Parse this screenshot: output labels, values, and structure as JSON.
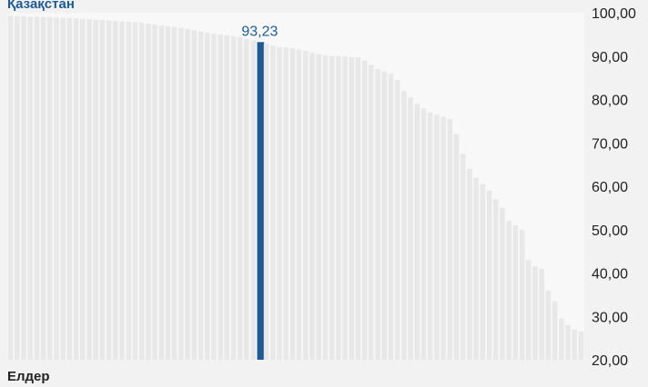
{
  "chart_data": {
    "type": "bar",
    "highlight_label": "Қазақстан",
    "xlabel": "Елдер",
    "ylabel": "",
    "ylim": [
      20,
      100
    ],
    "yticks": [
      "20,00",
      "30,00",
      "40,00",
      "50,00",
      "60,00",
      "70,00",
      "80,00",
      "90,00",
      "100,00"
    ],
    "highlight_index": 38,
    "highlight_value_label": "93,23",
    "values": [
      99.3,
      99.2,
      99.2,
      99.1,
      99.1,
      99.0,
      99.0,
      98.9,
      98.8,
      98.8,
      98.7,
      98.6,
      98.5,
      98.4,
      98.3,
      98.2,
      98.1,
      98.0,
      97.9,
      97.8,
      97.7,
      97.5,
      97.3,
      97.1,
      96.9,
      96.7,
      96.5,
      96.3,
      96.0,
      95.7,
      95.4,
      95.2,
      95.0,
      94.8,
      94.6,
      94.4,
      94.0,
      93.6,
      93.23,
      92.8,
      92.4,
      92.1,
      92.0,
      91.8,
      91.5,
      91.2,
      90.8,
      90.5,
      90.2,
      90.0,
      90.0,
      89.9,
      89.8,
      89.7,
      89.0,
      88.0,
      87.0,
      86.5,
      86.0,
      84.5,
      82.0,
      80.5,
      79.0,
      78.0,
      77.0,
      76.5,
      76.0,
      75.5,
      72.0,
      67.5,
      64.0,
      62.0,
      60.5,
      59.0,
      57.0,
      55.0,
      52.0,
      51.0,
      50.0,
      43.0,
      41.5,
      41.0,
      36.0,
      33.5,
      29.5,
      28.0,
      27.0,
      26.5
    ],
    "colors": {
      "bar": "#e8e8e8",
      "highlight": "#1d5a95",
      "plot_bg": "#f8f8f8",
      "page_bg": "#f2f2f2",
      "tick_text": "#222222",
      "label_text": "#1d5a95"
    }
  }
}
